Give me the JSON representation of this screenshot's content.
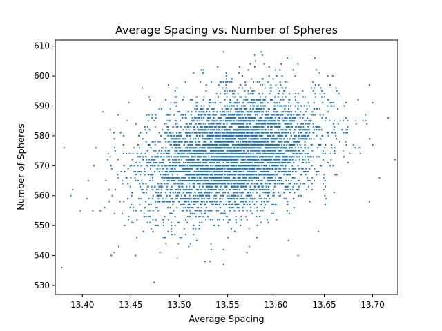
{
  "chart_data": {
    "type": "scatter",
    "title": "Average Spacing vs. Number of Spheres",
    "xlabel": "Average Spacing",
    "ylabel": "Number of Spheres",
    "xlim": [
      13.372,
      13.726
    ],
    "ylim": [
      527,
      612
    ],
    "xticks": [
      13.4,
      13.45,
      13.5,
      13.55,
      13.6,
      13.65,
      13.7
    ],
    "xtick_labels": [
      "13.40",
      "13.45",
      "13.50",
      "13.55",
      "13.60",
      "13.65",
      "13.70"
    ],
    "yticks": [
      530,
      540,
      550,
      560,
      570,
      580,
      590,
      600,
      610
    ],
    "ytick_labels": [
      "530",
      "540",
      "550",
      "560",
      "570",
      "580",
      "590",
      "600",
      "610"
    ],
    "grid": false,
    "marker_color": "#1f77b4",
    "distribution_summary": {
      "n_points": 5000,
      "x_mean": 13.555,
      "x_std": 0.045,
      "y_mean": 574,
      "y_std": 10,
      "correlation": 0.3,
      "y_integer_valued": true
    },
    "points": [
      [
        13.381,
        576
      ],
      [
        13.716,
        586
      ],
      [
        13.474,
        531
      ],
      [
        13.546,
        537
      ],
      [
        13.532,
        538
      ],
      [
        13.527,
        538
      ],
      [
        13.546,
        608
      ],
      [
        13.578,
        607
      ],
      [
        13.586,
        607
      ],
      [
        13.579,
        605
      ],
      [
        13.588,
        604
      ],
      [
        13.43,
        540
      ],
      [
        13.433,
        541
      ],
      [
        13.455,
        540
      ],
      [
        13.498,
        539
      ],
      [
        13.623,
        540
      ],
      [
        13.707,
        566
      ],
      [
        13.7,
        577
      ],
      [
        13.69,
        585
      ],
      [
        13.693,
        585
      ],
      [
        13.388,
        560
      ],
      [
        13.398,
        555
      ],
      [
        13.405,
        559
      ],
      [
        13.39,
        562
      ],
      [
        13.414,
        576
      ],
      [
        13.429,
        582
      ],
      [
        13.437,
        587
      ],
      [
        13.448,
        591
      ],
      [
        13.462,
        596
      ],
      [
        13.469,
        593
      ],
      [
        13.489,
        597
      ],
      [
        13.515,
        601
      ],
      [
        13.523,
        602
      ],
      [
        13.62,
        600
      ],
      [
        13.637,
        596
      ],
      [
        13.66,
        590
      ],
      [
        13.674,
        582
      ],
      [
        13.651,
        557
      ],
      [
        13.644,
        548
      ],
      [
        13.613,
        545
      ],
      [
        13.57,
        541
      ],
      [
        13.51,
        543
      ],
      [
        13.501,
        546
      ],
      [
        13.484,
        550
      ],
      [
        13.463,
        548
      ],
      [
        13.448,
        553
      ],
      [
        13.431,
        560
      ]
    ]
  }
}
